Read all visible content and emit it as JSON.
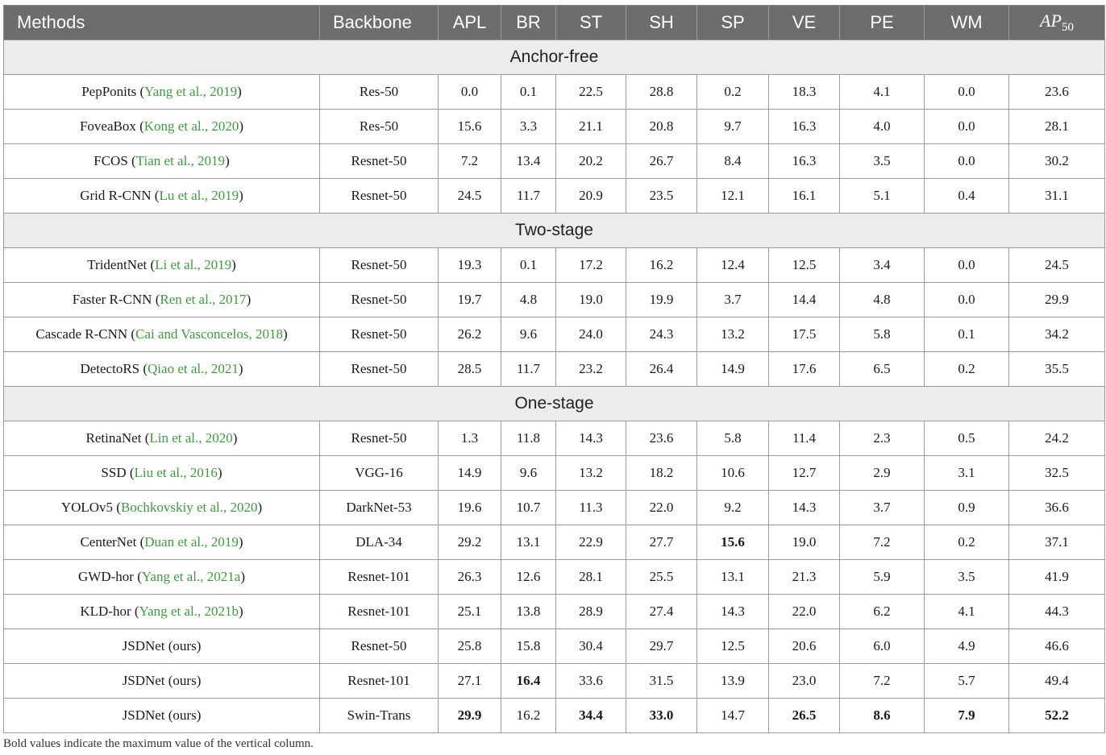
{
  "headers": [
    "Methods",
    "Backbone",
    "APL",
    "BR",
    "ST",
    "SH",
    "SP",
    "VE",
    "PE",
    "WM"
  ],
  "ap_header": {
    "base": "AP",
    "sub": "50"
  },
  "sections": [
    {
      "label": "Anchor-free",
      "rows": [
        {
          "method": "PepPonits",
          "cite": "Yang et al., 2019",
          "backbone": "Res-50",
          "values": [
            "0.0",
            "0.1",
            "22.5",
            "28.8",
            "0.2",
            "18.3",
            "4.1",
            "0.0",
            "23.6"
          ],
          "bold": []
        },
        {
          "method": "FoveaBox",
          "cite": "Kong et al., 2020",
          "backbone": "Res-50",
          "values": [
            "15.6",
            "3.3",
            "21.1",
            "20.8",
            "9.7",
            "16.3",
            "4.0",
            "0.0",
            "28.1"
          ],
          "bold": []
        },
        {
          "method": "FCOS",
          "cite": "Tian et al., 2019",
          "backbone": "Resnet-50",
          "values": [
            "7.2",
            "13.4",
            "20.2",
            "26.7",
            "8.4",
            "16.3",
            "3.5",
            "0.0",
            "30.2"
          ],
          "bold": []
        },
        {
          "method": "Grid R-CNN",
          "cite": "Lu et al., 2019",
          "backbone": "Resnet-50",
          "values": [
            "24.5",
            "11.7",
            "20.9",
            "23.5",
            "12.1",
            "16.1",
            "5.1",
            "0.4",
            "31.1"
          ],
          "bold": []
        }
      ]
    },
    {
      "label": "Two-stage",
      "rows": [
        {
          "method": "TridentNet",
          "cite": "Li et al., 2019",
          "backbone": "Resnet-50",
          "values": [
            "19.3",
            "0.1",
            "17.2",
            "16.2",
            "12.4",
            "12.5",
            "3.4",
            "0.0",
            "24.5"
          ],
          "bold": []
        },
        {
          "method": "Faster R-CNN",
          "cite": "Ren et al., 2017",
          "backbone": "Resnet-50",
          "values": [
            "19.7",
            "4.8",
            "19.0",
            "19.9",
            "3.7",
            "14.4",
            "4.8",
            "0.0",
            "29.9"
          ],
          "bold": []
        },
        {
          "method": "Cascade R-CNN",
          "cite": "Cai and Vasconcelos, 2018",
          "backbone": "Resnet-50",
          "values": [
            "26.2",
            "9.6",
            "24.0",
            "24.3",
            "13.2",
            "17.5",
            "5.8",
            "0.1",
            "34.2"
          ],
          "bold": []
        },
        {
          "method": "DetectoRS",
          "cite": "Qiao et al., 2021",
          "backbone": "Resnet-50",
          "values": [
            "28.5",
            "11.7",
            "23.2",
            "26.4",
            "14.9",
            "17.6",
            "6.5",
            "0.2",
            "35.5"
          ],
          "bold": []
        }
      ]
    },
    {
      "label": "One-stage",
      "rows": [
        {
          "method": "RetinaNet",
          "cite": "Lin et al., 2020",
          "backbone": "Resnet-50",
          "values": [
            "1.3",
            "11.8",
            "14.3",
            "23.6",
            "5.8",
            "11.4",
            "2.3",
            "0.5",
            "24.2"
          ],
          "bold": []
        },
        {
          "method": "SSD",
          "cite": "Liu et al., 2016",
          "backbone": "VGG-16",
          "values": [
            "14.9",
            "9.6",
            "13.2",
            "18.2",
            "10.6",
            "12.7",
            "2.9",
            "3.1",
            "32.5"
          ],
          "bold": []
        },
        {
          "method": "YOLOv5",
          "cite": "Bochkovskiy et al., 2020",
          "backbone": "DarkNet-53",
          "values": [
            "19.6",
            "10.7",
            "11.3",
            "22.0",
            "9.2",
            "14.3",
            "3.7",
            "0.9",
            "36.6"
          ],
          "bold": []
        },
        {
          "method": "CenterNet",
          "cite": "Duan et al., 2019",
          "backbone": "DLA-34",
          "values": [
            "29.2",
            "13.1",
            "22.9",
            "27.7",
            "15.6",
            "19.0",
            "7.2",
            "0.2",
            "37.1"
          ],
          "bold": [
            4
          ]
        },
        {
          "method": "GWD-hor",
          "cite": "Yang et al., 2021a",
          "backbone": "Resnet-101",
          "values": [
            "26.3",
            "12.6",
            "28.1",
            "25.5",
            "13.1",
            "21.3",
            "5.9",
            "3.5",
            "41.9"
          ],
          "bold": []
        },
        {
          "method": "KLD-hor",
          "cite": "Yang et al., 2021b",
          "backbone": "Resnet-101",
          "values": [
            "25.1",
            "13.8",
            "28.9",
            "27.4",
            "14.3",
            "22.0",
            "6.2",
            "4.1",
            "44.3"
          ],
          "bold": []
        },
        {
          "method": "JSDNet (ours)",
          "cite": "",
          "backbone": "Resnet-50",
          "values": [
            "25.8",
            "15.8",
            "30.4",
            "29.7",
            "12.5",
            "20.6",
            "6.0",
            "4.9",
            "46.6"
          ],
          "bold": []
        },
        {
          "method": "JSDNet (ours)",
          "cite": "",
          "backbone": "Resnet-101",
          "values": [
            "27.1",
            "16.4",
            "33.6",
            "31.5",
            "13.9",
            "23.0",
            "7.2",
            "5.7",
            "49.4"
          ],
          "bold": [
            1
          ]
        },
        {
          "method": "JSDNet (ours)",
          "cite": "",
          "backbone": "Swin-Trans",
          "values": [
            "29.9",
            "16.2",
            "34.4",
            "33.0",
            "14.7",
            "26.5",
            "8.6",
            "7.9",
            "52.2"
          ],
          "bold": [
            0,
            2,
            3,
            5,
            6,
            7,
            8
          ]
        }
      ]
    }
  ],
  "footnote": "Bold values indicate the maximum value of the vertical column."
}
